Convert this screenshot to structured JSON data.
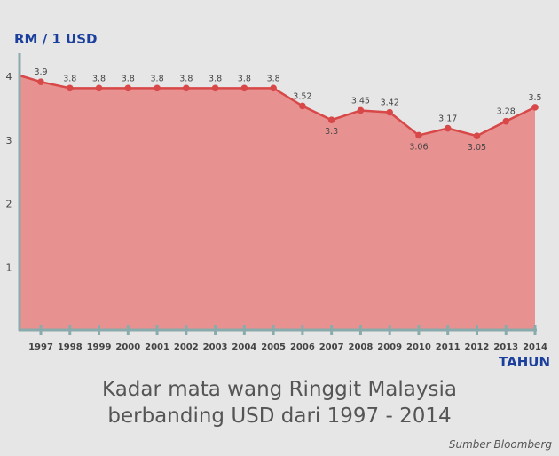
{
  "chart_data": {
    "type": "area",
    "title": "Kadar mata wang Ringgit Malaysia berbanding USD dari 1997 - 2014",
    "title_lines": [
      "Kadar mata wang Ringgit Malaysia",
      "berbanding USD dari 1997 - 2014"
    ],
    "ylabel": "RM / 1 USD",
    "xlabel": "TAHUN",
    "source": "Sumber Bloomberg",
    "categories": [
      "1997",
      "1998",
      "1999",
      "2000",
      "2001",
      "2002",
      "2003",
      "2004",
      "2005",
      "2006",
      "2007",
      "2008",
      "2009",
      "2010",
      "2011",
      "2012",
      "2013",
      "2014"
    ],
    "values": [
      3.9,
      3.8,
      3.8,
      3.8,
      3.8,
      3.8,
      3.8,
      3.8,
      3.8,
      3.52,
      3.3,
      3.45,
      3.42,
      3.06,
      3.17,
      3.05,
      3.28,
      3.5
    ],
    "data_labels": [
      "3.9",
      "3.8",
      "3.8",
      "3.8",
      "3.8",
      "3.8",
      "3.8",
      "3.8",
      "3.8",
      "3.52",
      "3.3",
      "3.45",
      "3.42",
      "3.06",
      "3.17",
      "3.05",
      "3.28",
      "3.5"
    ],
    "start_value": 4,
    "yticks": [
      "1",
      "2",
      "3",
      "4"
    ],
    "ylim": [
      0,
      4
    ],
    "grid": false,
    "legend": "none",
    "colors": {
      "fill": "#e89191",
      "line": "#d84848",
      "axis": "#8aabab",
      "axis_title": "#1a3f9c",
      "text": "#444444"
    }
  }
}
